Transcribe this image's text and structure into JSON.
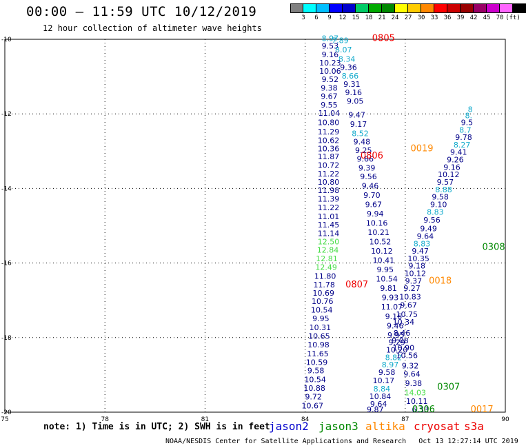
{
  "header": {
    "title": "00:00 – 11:59 UTC 10/12/2019",
    "subtitle": "12 hour collection of altimeter wave heights"
  },
  "colorbar": {
    "colors": [
      "#808080",
      "#00ffff",
      "#00bfff",
      "#0000ff",
      "#0000cd",
      "#00cc66",
      "#00aa00",
      "#008800",
      "#ffff00",
      "#ffcc00",
      "#ff8800",
      "#ff0000",
      "#cc0000",
      "#990000",
      "#990066",
      "#cc00cc",
      "#ff66ff",
      "#000000"
    ],
    "labels": [
      "3",
      "6",
      "9",
      "12",
      "15",
      "18",
      "21",
      "24",
      "27",
      "30",
      "33",
      "36",
      "39",
      "42",
      "45",
      "70",
      "(ft)"
    ]
  },
  "map": {
    "lon_ticks": [
      "75",
      "78",
      "81",
      "84",
      "87",
      "90"
    ],
    "lat_ticks": [
      "-10",
      "-12",
      "-14",
      "-16",
      "-18",
      "-20"
    ],
    "lon_range": [
      75,
      90
    ],
    "lat_range": [
      -10,
      -20
    ]
  },
  "colors": {
    "jason2": "#0000cc",
    "jason3": "#008800",
    "altika": "#ff8800",
    "cryosat": "#ee0000",
    "s3a": "#ee0000",
    "cyan": "#11aacc",
    "light_green": "#44dd44",
    "dark_blue": "#000088"
  },
  "tracks": [
    {
      "label": "0805",
      "label_color": "cryosat",
      "label_lon": 86.35,
      "label_lat": -10.05
    },
    {
      "label": "0806",
      "label_color": "cryosat",
      "label_lon": 86.0,
      "label_lat": -13.2
    },
    {
      "label": "0807",
      "label_color": "cryosat",
      "label_lon": 85.55,
      "label_lat": -16.65
    },
    {
      "label": "0019",
      "label_color": "altika",
      "label_lon": 87.5,
      "label_lat": -13.0
    },
    {
      "label": "0018",
      "label_color": "altika",
      "label_lon": 88.05,
      "label_lat": -16.55
    },
    {
      "label": "0017",
      "label_color": "altika",
      "label_lon": 89.3,
      "label_lat": -20.0
    },
    {
      "label": "0308",
      "label_color": "jason3",
      "label_lon": 89.65,
      "label_lat": -15.65
    },
    {
      "label": "0307",
      "label_color": "jason3",
      "label_lon": 88.3,
      "label_lat": -19.4
    },
    {
      "label": "0306",
      "label_color": "jason3",
      "label_lon": 87.55,
      "label_lat": -20.0
    }
  ],
  "obs": [
    {
      "v": "8.97",
      "c": "cyan",
      "lon": 84.75,
      "lat": -10.05
    },
    {
      "v": "7.89",
      "c": "cyan",
      "lon": 85.05,
      "lat": -10.1
    },
    {
      "v": "9.53",
      "c": "dark_blue",
      "lon": 84.75,
      "lat": -10.25
    },
    {
      "v": "8.07",
      "c": "cyan",
      "lon": 85.15,
      "lat": -10.35
    },
    {
      "v": "9.16",
      "c": "dark_blue",
      "lon": 84.75,
      "lat": -10.48
    },
    {
      "v": "8.34",
      "c": "cyan",
      "lon": 85.25,
      "lat": -10.6
    },
    {
      "v": "10.23",
      "c": "dark_blue",
      "lon": 84.75,
      "lat": -10.7
    },
    {
      "v": "9.36",
      "c": "dark_blue",
      "lon": 85.3,
      "lat": -10.82
    },
    {
      "v": "10.06",
      "c": "dark_blue",
      "lon": 84.75,
      "lat": -10.92
    },
    {
      "v": "8.66",
      "c": "cyan",
      "lon": 85.35,
      "lat": -11.05
    },
    {
      "v": "9.52",
      "c": "dark_blue",
      "lon": 84.75,
      "lat": -11.15
    },
    {
      "v": "9.31",
      "c": "dark_blue",
      "lon": 85.4,
      "lat": -11.28
    },
    {
      "v": "9.38",
      "c": "dark_blue",
      "lon": 84.72,
      "lat": -11.38
    },
    {
      "v": "9.16",
      "c": "dark_blue",
      "lon": 85.45,
      "lat": -11.5
    },
    {
      "v": "9.67",
      "c": "dark_blue",
      "lon": 84.72,
      "lat": -11.6
    },
    {
      "v": "9.05",
      "c": "dark_blue",
      "lon": 85.5,
      "lat": -11.73
    },
    {
      "v": "9.55",
      "c": "dark_blue",
      "lon": 84.72,
      "lat": -11.83
    },
    {
      "v": "11.04",
      "c": "dark_blue",
      "lon": 84.72,
      "lat": -12.05
    },
    {
      "v": "9.47",
      "c": "dark_blue",
      "lon": 85.55,
      "lat": -12.1
    },
    {
      "v": "10.80",
      "c": "dark_blue",
      "lon": 84.7,
      "lat": -12.3
    },
    {
      "v": "9.17",
      "c": "dark_blue",
      "lon": 85.6,
      "lat": -12.35
    },
    {
      "v": "11.29",
      "c": "dark_blue",
      "lon": 84.7,
      "lat": -12.55
    },
    {
      "v": "8.52",
      "c": "cyan",
      "lon": 85.65,
      "lat": -12.6
    },
    {
      "v": "10.62",
      "c": "dark_blue",
      "lon": 84.7,
      "lat": -12.78
    },
    {
      "v": "9.48",
      "c": "dark_blue",
      "lon": 85.7,
      "lat": -12.82
    },
    {
      "v": "10.36",
      "c": "dark_blue",
      "lon": 84.7,
      "lat": -13.0
    },
    {
      "v": "9.25",
      "c": "dark_blue",
      "lon": 85.75,
      "lat": -13.05
    },
    {
      "v": "11.87",
      "c": "dark_blue",
      "lon": 84.7,
      "lat": -13.22
    },
    {
      "v": "9.66",
      "c": "dark_blue",
      "lon": 85.8,
      "lat": -13.28
    },
    {
      "v": "10.72",
      "c": "dark_blue",
      "lon": 84.7,
      "lat": -13.45
    },
    {
      "v": "9.39",
      "c": "dark_blue",
      "lon": 85.85,
      "lat": -13.52
    },
    {
      "v": "11.22",
      "c": "dark_blue",
      "lon": 84.7,
      "lat": -13.68
    },
    {
      "v": "9.56",
      "c": "dark_blue",
      "lon": 85.9,
      "lat": -13.75
    },
    {
      "v": "10.80",
      "c": "dark_blue",
      "lon": 84.7,
      "lat": -13.9
    },
    {
      "v": "9.46",
      "c": "dark_blue",
      "lon": 85.95,
      "lat": -14.0
    },
    {
      "v": "11.98",
      "c": "dark_blue",
      "lon": 84.7,
      "lat": -14.12
    },
    {
      "v": "9.70",
      "c": "dark_blue",
      "lon": 86.0,
      "lat": -14.25
    },
    {
      "v": "11.39",
      "c": "dark_blue",
      "lon": 84.7,
      "lat": -14.35
    },
    {
      "v": "9.67",
      "c": "dark_blue",
      "lon": 86.05,
      "lat": -14.5
    },
    {
      "v": "11.22",
      "c": "dark_blue",
      "lon": 84.7,
      "lat": -14.58
    },
    {
      "v": "9.94",
      "c": "dark_blue",
      "lon": 86.1,
      "lat": -14.75
    },
    {
      "v": "11.01",
      "c": "dark_blue",
      "lon": 84.7,
      "lat": -14.82
    },
    {
      "v": "10.16",
      "c": "dark_blue",
      "lon": 86.15,
      "lat": -15.0
    },
    {
      "v": "11.45",
      "c": "dark_blue",
      "lon": 84.7,
      "lat": -15.05
    },
    {
      "v": "10.21",
      "c": "dark_blue",
      "lon": 86.2,
      "lat": -15.25
    },
    {
      "v": "11.14",
      "c": "dark_blue",
      "lon": 84.7,
      "lat": -15.28
    },
    {
      "v": "10.52",
      "c": "dark_blue",
      "lon": 86.25,
      "lat": -15.5
    },
    {
      "v": "12.50",
      "c": "light_green",
      "lon": 84.7,
      "lat": -15.5
    },
    {
      "v": "12.84",
      "c": "light_green",
      "lon": 84.68,
      "lat": -15.72
    },
    {
      "v": "10.12",
      "c": "dark_blue",
      "lon": 86.3,
      "lat": -15.75
    },
    {
      "v": "12.81",
      "c": "light_green",
      "lon": 84.65,
      "lat": -15.95
    },
    {
      "v": "10.41",
      "c": "dark_blue",
      "lon": 86.35,
      "lat": -16.0
    },
    {
      "v": "12.49",
      "c": "light_green",
      "lon": 84.63,
      "lat": -16.18
    },
    {
      "v": "9.95",
      "c": "dark_blue",
      "lon": 86.4,
      "lat": -16.25
    },
    {
      "v": "11.80",
      "c": "dark_blue",
      "lon": 84.6,
      "lat": -16.42
    },
    {
      "v": "10.54",
      "c": "dark_blue",
      "lon": 86.45,
      "lat": -16.5
    },
    {
      "v": "11.78",
      "c": "dark_blue",
      "lon": 84.57,
      "lat": -16.65
    },
    {
      "v": "9.81",
      "c": "dark_blue",
      "lon": 86.5,
      "lat": -16.75
    },
    {
      "v": "10.69",
      "c": "dark_blue",
      "lon": 84.55,
      "lat": -16.88
    },
    {
      "v": "9.93",
      "c": "dark_blue",
      "lon": 86.55,
      "lat": -17.0
    },
    {
      "v": "10.76",
      "c": "dark_blue",
      "lon": 84.52,
      "lat": -17.1
    },
    {
      "v": "11.07",
      "c": "dark_blue",
      "lon": 86.6,
      "lat": -17.25
    },
    {
      "v": "10.54",
      "c": "dark_blue",
      "lon": 84.5,
      "lat": -17.33
    },
    {
      "v": "9.16",
      "c": "dark_blue",
      "lon": 86.65,
      "lat": -17.5
    },
    {
      "v": "9.95",
      "c": "dark_blue",
      "lon": 84.47,
      "lat": -17.56
    },
    {
      "v": "9.46",
      "c": "dark_blue",
      "lon": 86.7,
      "lat": -17.75
    },
    {
      "v": "10.31",
      "c": "dark_blue",
      "lon": 84.45,
      "lat": -17.8
    },
    {
      "v": "9.95",
      "c": "dark_blue",
      "lon": 86.72,
      "lat": -18.0
    },
    {
      "v": "10.65",
      "c": "dark_blue",
      "lon": 84.42,
      "lat": -18.03
    },
    {
      "v": "9.29",
      "c": "dark_blue",
      "lon": 86.75,
      "lat": -18.2
    },
    {
      "v": "10.98",
      "c": "dark_blue",
      "lon": 84.4,
      "lat": -18.26
    },
    {
      "v": "10.20",
      "c": "dark_blue",
      "lon": 86.75,
      "lat": -18.4
    },
    {
      "v": "11.65",
      "c": "dark_blue",
      "lon": 84.38,
      "lat": -18.5
    },
    {
      "v": "8.82",
      "c": "cyan",
      "lon": 86.65,
      "lat": -18.6
    },
    {
      "v": "10.59",
      "c": "dark_blue",
      "lon": 84.35,
      "lat": -18.73
    },
    {
      "v": "8.97",
      "c": "cyan",
      "lon": 86.55,
      "lat": -18.8
    },
    {
      "v": "9.58",
      "c": "dark_blue",
      "lon": 84.32,
      "lat": -18.96
    },
    {
      "v": "9.58",
      "c": "dark_blue",
      "lon": 86.45,
      "lat": -19.0
    },
    {
      "v": "10.54",
      "c": "dark_blue",
      "lon": 84.3,
      "lat": -19.2
    },
    {
      "v": "10.17",
      "c": "dark_blue",
      "lon": 86.35,
      "lat": -19.22
    },
    {
      "v": "10.88",
      "c": "dark_blue",
      "lon": 84.28,
      "lat": -19.43
    },
    {
      "v": "8.84",
      "c": "cyan",
      "lon": 86.3,
      "lat": -19.45
    },
    {
      "v": "9.72",
      "c": "dark_blue",
      "lon": 84.25,
      "lat": -19.66
    },
    {
      "v": "10.84",
      "c": "dark_blue",
      "lon": 86.25,
      "lat": -19.65
    },
    {
      "v": "10.67",
      "c": "dark_blue",
      "lon": 84.22,
      "lat": -19.9
    },
    {
      "v": "9.64",
      "c": "dark_blue",
      "lon": 86.2,
      "lat": -19.85
    },
    {
      "v": "9.87",
      "c": "dark_blue",
      "lon": 86.1,
      "lat": -20.0
    },
    {
      "v": "9.32",
      "c": "dark_blue",
      "lon": 87.15,
      "lat": -18.83
    },
    {
      "v": "9.64",
      "c": "dark_blue",
      "lon": 87.2,
      "lat": -19.05
    },
    {
      "v": "9.38",
      "c": "dark_blue",
      "lon": 87.25,
      "lat": -19.3
    },
    {
      "v": "14.03",
      "c": "light_green",
      "lon": 87.3,
      "lat": -19.55
    },
    {
      "v": "10.11",
      "c": "dark_blue",
      "lon": 87.35,
      "lat": -19.78
    },
    {
      "v": "6.33",
      "c": "dark_blue",
      "lon": 87.45,
      "lat": -20.0
    },
    {
      "v": "10.56",
      "c": "dark_blue",
      "lon": 87.05,
      "lat": -18.55
    },
    {
      "v": "10.90",
      "c": "dark_blue",
      "lon": 86.95,
      "lat": -18.35
    },
    {
      "v": "9.08",
      "c": "dark_blue",
      "lon": 86.85,
      "lat": -18.15
    },
    {
      "v": "8.46",
      "c": "dark_blue",
      "lon": 86.9,
      "lat": -17.95
    },
    {
      "v": "10.34",
      "c": "dark_blue",
      "lon": 86.95,
      "lat": -17.65
    },
    {
      "v": "10.75",
      "c": "dark_blue",
      "lon": 87.05,
      "lat": -17.45
    },
    {
      "v": "9.67",
      "c": "dark_blue",
      "lon": 87.1,
      "lat": -17.2
    },
    {
      "v": "10.83",
      "c": "dark_blue",
      "lon": 87.15,
      "lat": -16.98
    },
    {
      "v": "9.27",
      "c": "dark_blue",
      "lon": 87.2,
      "lat": -16.75
    },
    {
      "v": "9.37",
      "c": "dark_blue",
      "lon": 87.25,
      "lat": -16.55
    },
    {
      "v": "10.12",
      "c": "dark_blue",
      "lon": 87.3,
      "lat": -16.35
    },
    {
      "v": "9.18",
      "c": "dark_blue",
      "lon": 87.35,
      "lat": -16.15
    },
    {
      "v": "10.35",
      "c": "dark_blue",
      "lon": 87.4,
      "lat": -15.95
    },
    {
      "v": "9.47",
      "c": "dark_blue",
      "lon": 87.45,
      "lat": -15.75
    },
    {
      "v": "8.83",
      "c": "cyan",
      "lon": 87.5,
      "lat": -15.55
    },
    {
      "v": "9.64",
      "c": "dark_blue",
      "lon": 87.6,
      "lat": -15.35
    },
    {
      "v": "9.49",
      "c": "dark_blue",
      "lon": 87.7,
      "lat": -15.15
    },
    {
      "v": "9.56",
      "c": "dark_blue",
      "lon": 87.8,
      "lat": -14.92
    },
    {
      "v": "8.83",
      "c": "cyan",
      "lon": 87.9,
      "lat": -14.7
    },
    {
      "v": "9.10",
      "c": "dark_blue",
      "lon": 88.0,
      "lat": -14.5
    },
    {
      "v": "9.58",
      "c": "dark_blue",
      "lon": 88.05,
      "lat": -14.3
    },
    {
      "v": "8.88",
      "c": "cyan",
      "lon": 88.15,
      "lat": -14.1
    },
    {
      "v": "9.57",
      "c": "dark_blue",
      "lon": 88.2,
      "lat": -13.9
    },
    {
      "v": "10.12",
      "c": "dark_blue",
      "lon": 88.3,
      "lat": -13.7
    },
    {
      "v": "9.16",
      "c": "dark_blue",
      "lon": 88.4,
      "lat": -13.5
    },
    {
      "v": "9.26",
      "c": "dark_blue",
      "lon": 88.5,
      "lat": -13.3
    },
    {
      "v": "9.41",
      "c": "dark_blue",
      "lon": 88.6,
      "lat": -13.1
    },
    {
      "v": "8.27",
      "c": "cyan",
      "lon": 88.7,
      "lat": -12.9
    },
    {
      "v": "9.78",
      "c": "dark_blue",
      "lon": 88.75,
      "lat": -12.7
    },
    {
      "v": "8.7",
      "c": "cyan",
      "lon": 88.8,
      "lat": -12.5
    },
    {
      "v": "9.5",
      "c": "dark_blue",
      "lon": 88.85,
      "lat": -12.3
    },
    {
      "v": "8.",
      "c": "cyan",
      "lon": 88.9,
      "lat": -12.12
    },
    {
      "v": "8",
      "c": "cyan",
      "lon": 88.95,
      "lat": -11.95
    }
  ],
  "footer": {
    "note": "note: 1) Time is in UTC; 2) SWH is in feet",
    "legend": [
      {
        "name": "jason2",
        "color": "jason2"
      },
      {
        "name": "jason3",
        "color": "jason3"
      },
      {
        "name": "altika",
        "color": "altika"
      },
      {
        "name": "cryosat",
        "color": "cryosat"
      },
      {
        "name": "s3a",
        "color": "s3a"
      }
    ],
    "credit": "NOAA/NESDIS Center for Satellite Applications and Research   Oct 13 12:27:14 UTC 2019"
  }
}
